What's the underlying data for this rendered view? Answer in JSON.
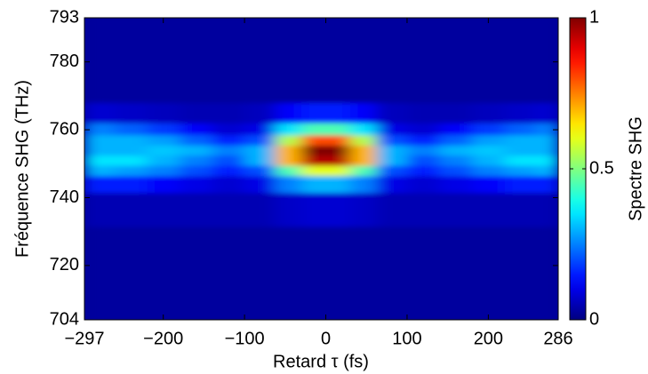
{
  "chart_data": {
    "type": "heatmap",
    "colorscale": "jet",
    "xlabel": "Retard τ (fs)",
    "ylabel": "Fréquence SHG (THz)",
    "colorbar_label": "Spectre SHG",
    "xlim": [
      -297,
      286
    ],
    "ylim": [
      704,
      793
    ],
    "clim": [
      0,
      1
    ],
    "xticks": [
      {
        "value": -297,
        "label": "−297"
      },
      {
        "value": -200,
        "label": "−200"
      },
      {
        "value": -100,
        "label": "−100"
      },
      0,
      100,
      200,
      286
    ],
    "yticks": [
      704,
      720,
      740,
      760,
      780,
      793
    ],
    "cticks": [
      0,
      0.5,
      1
    ],
    "x": [
      -280,
      -240,
      -200,
      -160,
      -120,
      -80,
      -45,
      -15,
      15,
      45,
      80,
      120,
      160,
      200,
      240,
      275
    ],
    "y": [
      710,
      725,
      738,
      745,
      748,
      751,
      754,
      757,
      760,
      764,
      772,
      785
    ],
    "z": [
      [
        0.03,
        0.03,
        0.03,
        0.03,
        0.03,
        0.03,
        0.03,
        0.03,
        0.03,
        0.03,
        0.03,
        0.03,
        0.03,
        0.03,
        0.03,
        0.03
      ],
      [
        0.03,
        0.03,
        0.03,
        0.03,
        0.03,
        0.03,
        0.03,
        0.03,
        0.03,
        0.03,
        0.03,
        0.03,
        0.03,
        0.03,
        0.03,
        0.03
      ],
      [
        0.05,
        0.05,
        0.05,
        0.05,
        0.05,
        0.05,
        0.07,
        0.08,
        0.08,
        0.07,
        0.05,
        0.05,
        0.05,
        0.05,
        0.05,
        0.05
      ],
      [
        0.15,
        0.15,
        0.12,
        0.1,
        0.08,
        0.1,
        0.25,
        0.3,
        0.3,
        0.25,
        0.1,
        0.08,
        0.1,
        0.12,
        0.15,
        0.15
      ],
      [
        0.3,
        0.28,
        0.25,
        0.2,
        0.15,
        0.2,
        0.45,
        0.6,
        0.6,
        0.45,
        0.2,
        0.15,
        0.2,
        0.25,
        0.28,
        0.3
      ],
      [
        0.35,
        0.35,
        0.3,
        0.25,
        0.2,
        0.3,
        0.7,
        0.95,
        0.95,
        0.7,
        0.3,
        0.2,
        0.25,
        0.3,
        0.35,
        0.35
      ],
      [
        0.3,
        0.3,
        0.32,
        0.3,
        0.25,
        0.3,
        0.7,
        1,
        1,
        0.7,
        0.3,
        0.25,
        0.3,
        0.32,
        0.3,
        0.3
      ],
      [
        0.3,
        0.3,
        0.28,
        0.22,
        0.15,
        0.2,
        0.55,
        0.8,
        0.8,
        0.55,
        0.2,
        0.15,
        0.22,
        0.28,
        0.3,
        0.3
      ],
      [
        0.25,
        0.22,
        0.18,
        0.12,
        0.08,
        0.1,
        0.35,
        0.45,
        0.45,
        0.35,
        0.1,
        0.08,
        0.12,
        0.18,
        0.22,
        0.25
      ],
      [
        0.08,
        0.07,
        0.06,
        0.05,
        0.05,
        0.06,
        0.12,
        0.15,
        0.15,
        0.12,
        0.06,
        0.05,
        0.05,
        0.06,
        0.07,
        0.08
      ],
      [
        0.03,
        0.03,
        0.03,
        0.03,
        0.03,
        0.03,
        0.03,
        0.03,
        0.03,
        0.03,
        0.03,
        0.03,
        0.03,
        0.03,
        0.03,
        0.03
      ],
      [
        0.03,
        0.03,
        0.03,
        0.03,
        0.03,
        0.03,
        0.03,
        0.03,
        0.03,
        0.03,
        0.03,
        0.03,
        0.03,
        0.03,
        0.03,
        0.03
      ]
    ]
  }
}
